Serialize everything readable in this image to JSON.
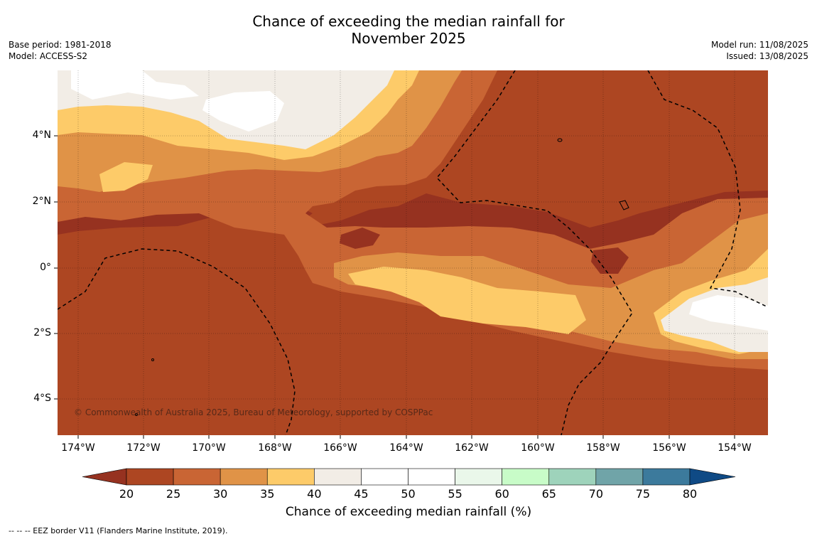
{
  "title_line1": "Chance of exceeding the median rainfall for",
  "title_line2": "November 2025",
  "base_period": "Base period: 1981-2018",
  "model": "Model: ACCESS-S2",
  "model_run": "Model run: 11/08/2025",
  "issued": "Issued: 13/08/2025",
  "copyright": "© Commonwealth of Australia 2025, Bureau of Meteorology, supported by COSPPac",
  "footnote": "--  --  -- EEZ border V11 (Flanders Marine Institute, 2019).",
  "lat_labels": [
    "4°N",
    "2°N",
    "0°",
    "2°S",
    "4°S"
  ],
  "lon_labels": [
    "174°W",
    "172°W",
    "170°W",
    "168°W",
    "166°W",
    "164°W",
    "162°W",
    "160°W",
    "158°W",
    "156°W",
    "154°W"
  ],
  "colorbar": {
    "title": "Chance of exceeding median rainfall (%)",
    "ticks": [
      "20",
      "25",
      "30",
      "35",
      "40",
      "45",
      "50",
      "55",
      "60",
      "65",
      "70",
      "75",
      "80"
    ],
    "under_color": "#963220",
    "over_color": "#0f4a85",
    "bins": [
      {
        "range": "20-25",
        "color": "#ad4622"
      },
      {
        "range": "25-30",
        "color": "#c96534"
      },
      {
        "range": "30-35",
        "color": "#e09347"
      },
      {
        "range": "35-40",
        "color": "#fdcb69"
      },
      {
        "range": "40-45",
        "color": "#f2ede6"
      },
      {
        "range": "45-50",
        "color": "#ffffff"
      },
      {
        "range": "50-55",
        "color": "#ffffff"
      },
      {
        "range": "55-60",
        "color": "#eaf7ea"
      },
      {
        "range": "60-65",
        "color": "#c8fcc8"
      },
      {
        "range": "65-70",
        "color": "#9ed3bb"
      },
      {
        "range": "70-75",
        "color": "#70a4a8"
      },
      {
        "range": "75-80",
        "color": "#3c7a9c"
      }
    ]
  }
}
